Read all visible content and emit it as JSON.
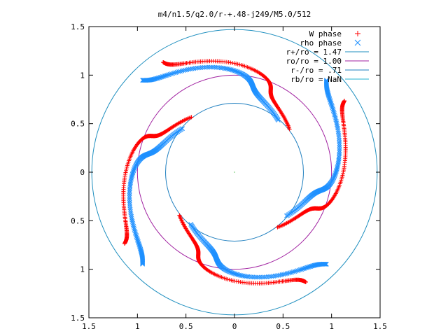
{
  "chart_data": {
    "type": "scatter",
    "title": "m4/n1.5/q2.0/r-+.48-j249/M5.0/512",
    "xlabel": "",
    "ylabel": "",
    "xlim": [
      -1.5,
      1.5
    ],
    "ylim": [
      -1.5,
      1.5
    ],
    "x_ticks": [
      "1.5",
      "1",
      "0.5",
      "0",
      "0.5",
      "1",
      "1.5"
    ],
    "y_ticks": [
      "1.5",
      "1",
      "0.5",
      "0",
      "0.5",
      "1",
      "1.5"
    ],
    "grid": false,
    "legend_position": "top-right",
    "series": [
      {
        "name": "W phase",
        "color": "#ff0000",
        "marker": "plus",
        "kind": "points",
        "arms": 4,
        "arm_start_angle_deg": 38,
        "r_start": 0.72,
        "r_end": 1.35,
        "twist_deg": 85,
        "wiggle": 0.13
      },
      {
        "name": "rho phase",
        "color": "#1e90ff",
        "marker": "x",
        "kind": "points",
        "arms": 4,
        "arm_start_angle_deg": 50,
        "r_start": 0.7,
        "r_end": 1.34,
        "twist_deg": 85,
        "wiggle": 0.11
      },
      {
        "name": "r+/ro = 1.47",
        "color": "#1f8fbf",
        "kind": "circle",
        "r": 1.47
      },
      {
        "name": "ro/ro = 1.00",
        "color": "#a020a0",
        "kind": "circle",
        "r": 1.0
      },
      {
        "name": "r-/ro = .71",
        "color": "#1f7fbf",
        "kind": "circle",
        "r": 0.71
      },
      {
        "name": "rb/ro = NaN",
        "color": "#20b2d0",
        "kind": "circle",
        "r": null
      }
    ]
  }
}
